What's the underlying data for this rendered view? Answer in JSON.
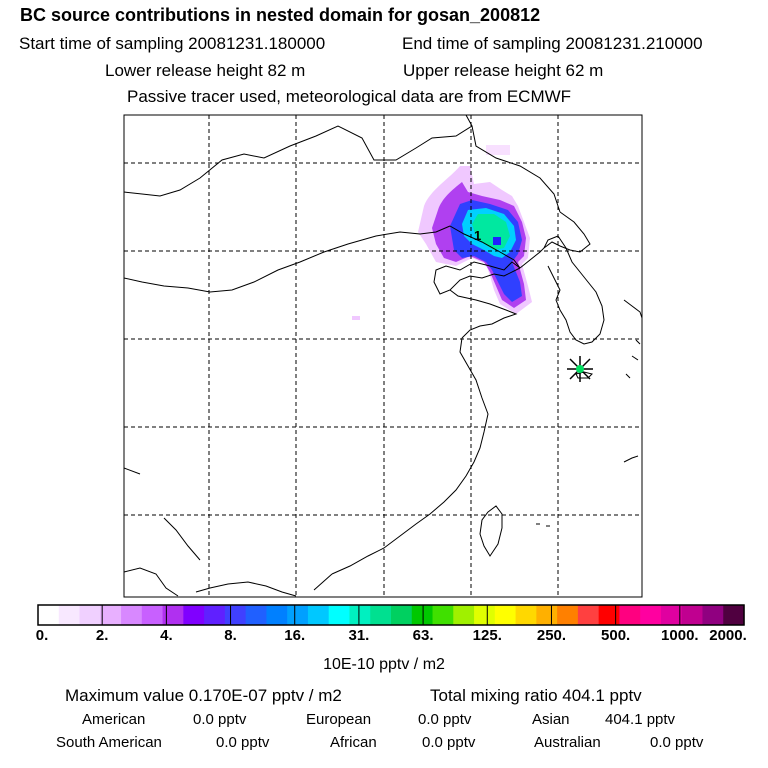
{
  "header": {
    "title": "BC  source contributions in nested domain for gosan_200812",
    "start_time": "Start time of sampling 20081231.180000",
    "end_time": "End time of sampling 20081231.210000",
    "lower_height": "Lower release height   82 m",
    "upper_height": "Upper release height   62 m",
    "tracer_note": "Passive tracer used, meteorological data are from ECMWF"
  },
  "map": {
    "marker_label": "1",
    "station_marker": "asterisk-star-icon"
  },
  "colorbar": {
    "colors": [
      "#ffffff",
      "#f8e8ff",
      "#f0d0ff",
      "#e8b0ff",
      "#d888ff",
      "#c860ff",
      "#b030f0",
      "#8000ff",
      "#6020ff",
      "#4040ff",
      "#2060ff",
      "#0080ff",
      "#00a0ff",
      "#00c8ff",
      "#00ffff",
      "#00f0c0",
      "#00e090",
      "#00d060",
      "#00c800",
      "#40e000",
      "#a0f000",
      "#e0ff00",
      "#ffff00",
      "#ffd800",
      "#ffb000",
      "#ff8000",
      "#ff4040",
      "#ff0000",
      "#ff0080",
      "#ff00a0",
      "#e000a0",
      "#c00090",
      "#900080",
      "#500040"
    ],
    "ticks": [
      "0.",
      "2.",
      "4.",
      "8.",
      "16.",
      "31.",
      "63.",
      "125.",
      "250.",
      "500.",
      "1000.",
      "2000."
    ],
    "units": "10E-10 pptv / m2"
  },
  "stats": {
    "maximum": "Maximum value  0.170E-07 pptv / m2",
    "total": "Total mixing ratio      404.1 pptv",
    "regions": [
      {
        "name": "American",
        "value": "0.0 pptv"
      },
      {
        "name": "European",
        "value": "0.0 pptv"
      },
      {
        "name": "Asian",
        "value": "404.1 pptv"
      },
      {
        "name": "South American",
        "value": "0.0 pptv"
      },
      {
        "name": "African",
        "value": "0.0 pptv"
      },
      {
        "name": "Australian",
        "value": "0.0 pptv"
      }
    ]
  }
}
